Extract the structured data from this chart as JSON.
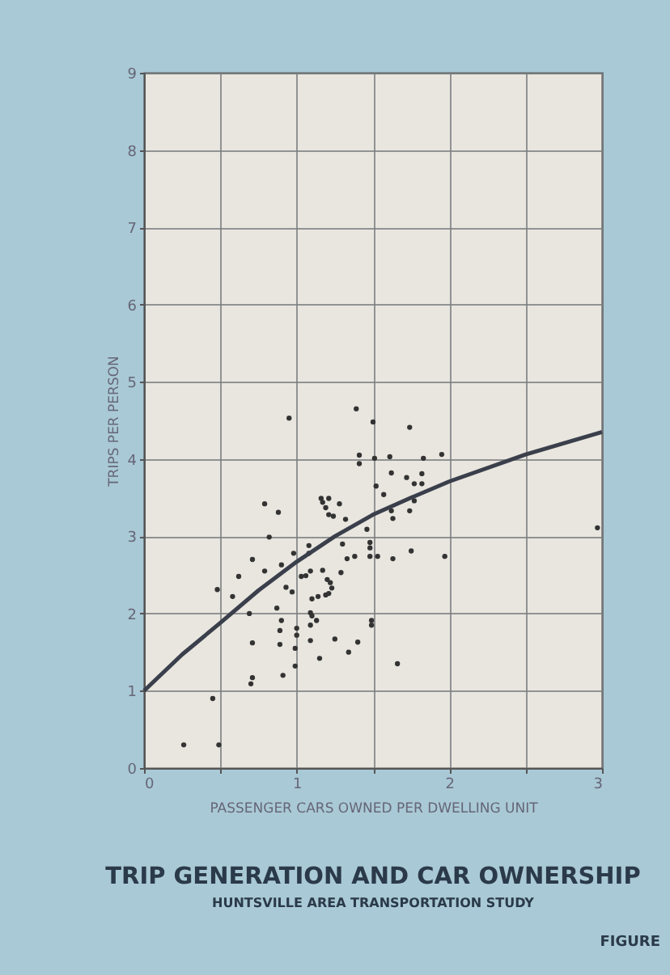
{
  "chart_data": {
    "type": "scatter",
    "title": "TRIP GENERATION AND CAR OWNERSHIP",
    "subtitle": "HUNTSVILLE AREA TRANSPORTATION STUDY",
    "xlabel": "PASSENGER CARS OWNED PER DWELLING UNIT",
    "ylabel": "TRIPS PER PERSON",
    "annotations": [
      "FIGURE"
    ],
    "xlim": [
      0,
      3
    ],
    "ylim": [
      0,
      9
    ],
    "xticks": [
      0,
      {
        "value": 0.5,
        "label": null
      },
      1,
      {
        "value": 1.5,
        "label": null
      },
      2,
      {
        "value": 2.5,
        "label": null
      },
      3
    ],
    "yticks": [
      0,
      1,
      2,
      3,
      4,
      5,
      6,
      7,
      8,
      9
    ],
    "grid": true,
    "series": [
      {
        "marker": "circle",
        "color": "#333333",
        "x": [
          0.26,
          0.49,
          0.45,
          0.48,
          0.58,
          0.62,
          0.71,
          0.69,
          0.71,
          0.71,
          0.7,
          0.79,
          0.88,
          0.82,
          0.79,
          0.95,
          0.9,
          0.93,
          0.97,
          0.87,
          0.9,
          0.89,
          0.89,
          0.91,
          1.0,
          1.0,
          0.99,
          0.99,
          0.98,
          1.08,
          1.08,
          1.03,
          1.06,
          1.09,
          1.1,
          1.09,
          1.1,
          1.09,
          1.13,
          1.09,
          1.15,
          1.17,
          1.2,
          1.22,
          1.14,
          1.19,
          1.21,
          1.23,
          1.29,
          1.25,
          1.16,
          1.17,
          1.21,
          1.19,
          1.21,
          1.24,
          1.28,
          1.32,
          1.3,
          1.33,
          1.38,
          1.34,
          1.4,
          1.39,
          1.5,
          1.41,
          1.41,
          1.51,
          1.52,
          1.46,
          1.48,
          1.48,
          1.48,
          1.53,
          1.49,
          1.49,
          1.57,
          1.74,
          1.61,
          1.83,
          1.95,
          1.62,
          1.72,
          1.82,
          1.77,
          1.82,
          1.77,
          1.74,
          1.62,
          1.63,
          1.75,
          1.63,
          1.97,
          1.66,
          2.97
        ],
        "values": [
          0.3,
          0.3,
          0.9,
          2.31,
          2.22,
          2.48,
          2.7,
          2.0,
          1.62,
          1.17,
          1.09,
          3.42,
          3.31,
          2.99,
          2.55,
          4.53,
          2.63,
          2.34,
          2.28,
          2.07,
          1.91,
          1.78,
          1.6,
          1.2,
          1.81,
          1.72,
          1.55,
          1.32,
          2.78,
          2.88,
          2.78,
          2.48,
          2.49,
          2.55,
          2.19,
          2.01,
          1.97,
          1.85,
          1.91,
          1.65,
          1.42,
          2.56,
          2.44,
          2.4,
          2.22,
          2.24,
          2.26,
          2.33,
          2.53,
          1.67,
          3.49,
          3.44,
          3.49,
          3.37,
          3.28,
          3.26,
          3.42,
          3.22,
          2.9,
          2.71,
          2.74,
          1.5,
          1.63,
          4.65,
          4.48,
          4.05,
          3.94,
          4.01,
          3.65,
          3.09,
          2.92,
          2.85,
          2.74,
          2.74,
          1.91,
          1.85,
          3.54,
          4.41,
          4.03,
          4.01,
          4.06,
          3.82,
          3.76,
          3.81,
          3.68,
          3.68,
          3.46,
          3.33,
          3.33,
          3.23,
          2.81,
          2.71,
          2.74,
          1.35,
          3.11
        ]
      },
      {
        "type": "line",
        "color": "#3a3f4b",
        "x": [
          0,
          0.25,
          0.5,
          0.75,
          1,
          1.25,
          1.5,
          1.75,
          2,
          2.5,
          3
        ],
        "values": [
          1.0,
          1.47,
          1.88,
          2.3,
          2.67,
          3.0,
          3.28,
          3.5,
          3.71,
          4.06,
          4.35
        ]
      }
    ]
  }
}
